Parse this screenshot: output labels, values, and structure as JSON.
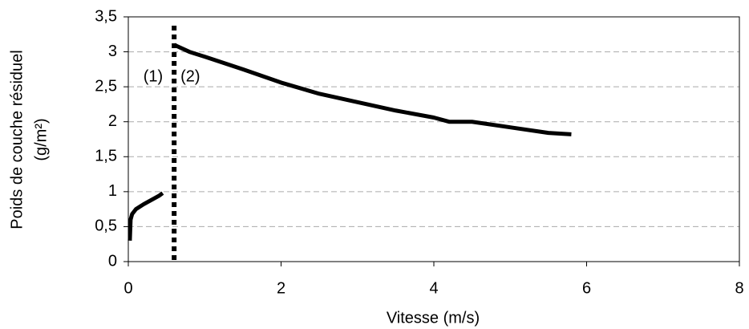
{
  "chart_data": {
    "type": "line",
    "xlabel": "Vitesse (m/s)",
    "ylabel": [
      "Poids de couche résiduel",
      "(g/m²)"
    ],
    "annotations": [
      "(1)",
      "(2)"
    ],
    "vline": 0.6,
    "x": [
      0.02,
      0.03,
      0.05,
      0.1,
      0.2,
      0.3,
      0.4,
      0.45,
      null,
      0.6,
      0.8,
      1.0,
      1.5,
      2.0,
      2.5,
      3.0,
      3.5,
      4.0,
      4.2,
      4.5,
      5.0,
      5.5,
      5.8
    ],
    "series": [
      {
        "color": "#000000",
        "values": [
          0.3,
          0.6,
          0.68,
          0.75,
          0.82,
          0.88,
          0.94,
          0.98,
          null,
          3.1,
          3.0,
          2.93,
          2.75,
          2.56,
          2.4,
          2.28,
          2.16,
          2.06,
          2.0,
          2.0,
          1.92,
          1.84,
          1.82
        ]
      }
    ],
    "xlim": [
      0,
      8
    ],
    "xticks": [
      0,
      2,
      4,
      6,
      8
    ],
    "ylim": [
      0,
      3.5
    ],
    "yticks": [
      0,
      {
        "value": 0.5,
        "label": "0,5"
      },
      1,
      {
        "value": 1.5,
        "label": "1,5"
      },
      2,
      {
        "value": 2.5,
        "label": "2,5"
      },
      3,
      {
        "value": 3.5,
        "label": "3,5"
      }
    ],
    "grid": true
  }
}
